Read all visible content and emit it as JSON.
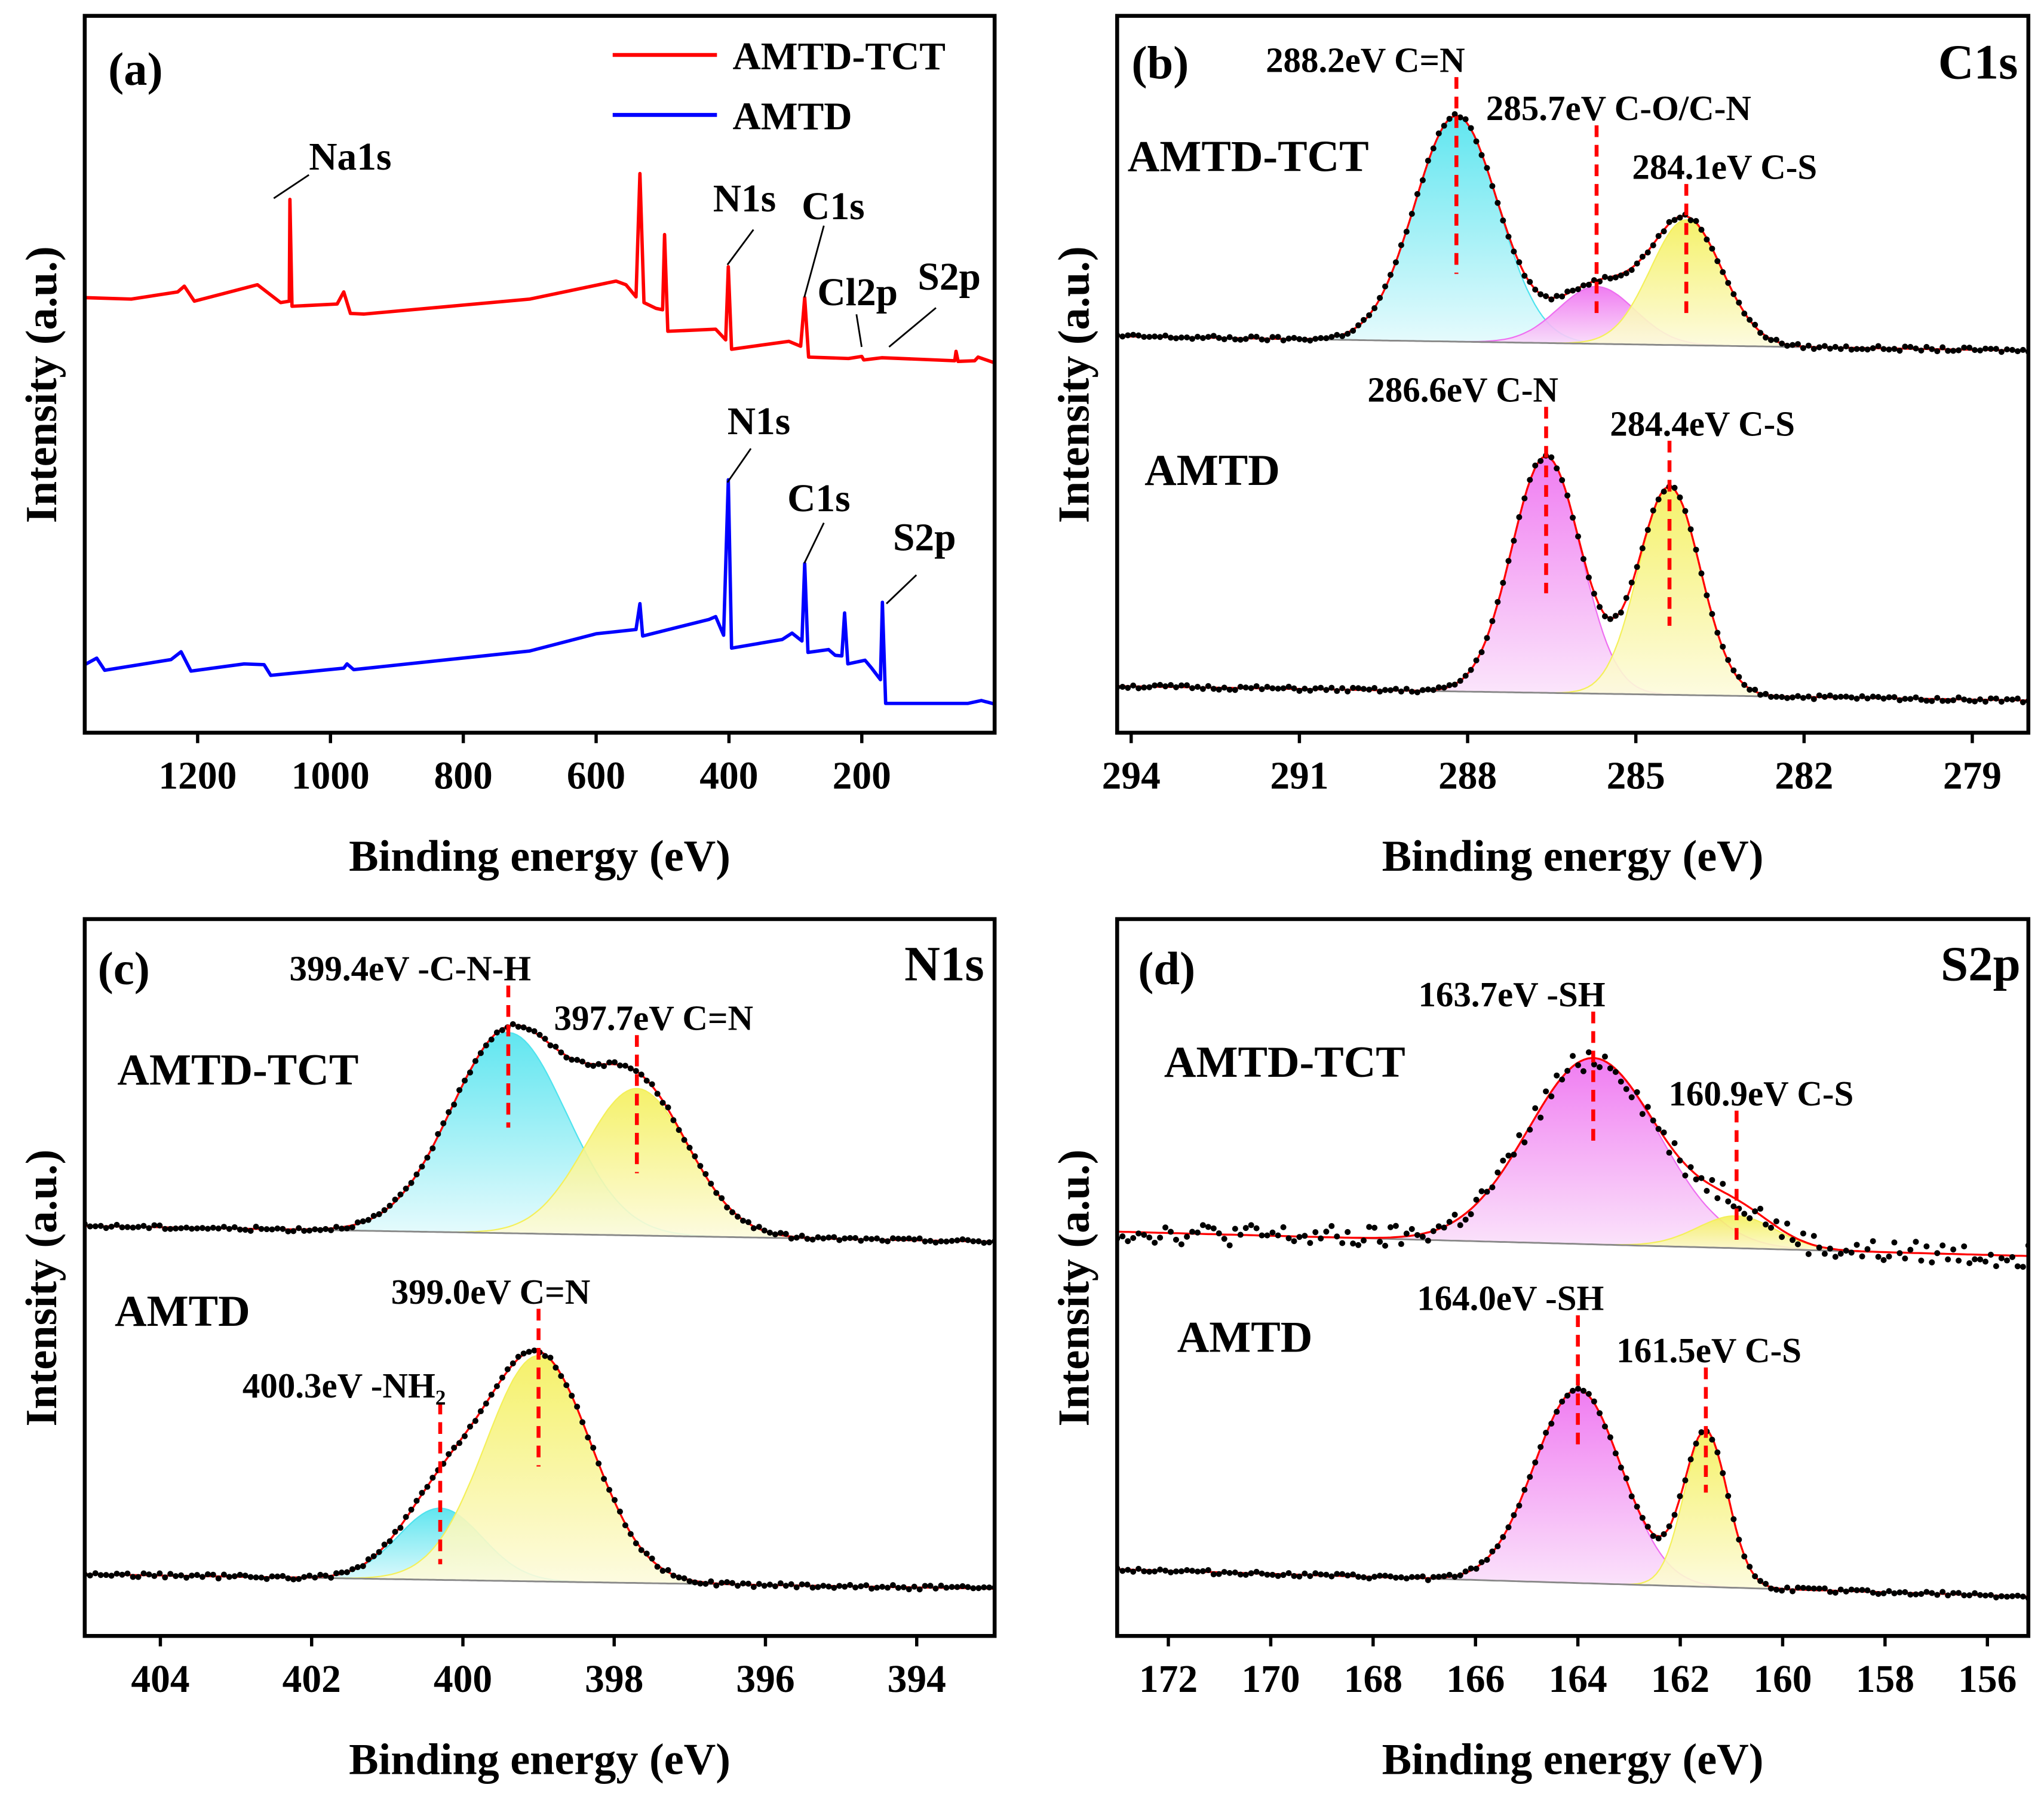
{
  "colors": {
    "amtd_tct": "#ff0000",
    "amtd": "#0000ff",
    "fit": "#ff0000",
    "cyan": "#4fe3ee",
    "magenta": "#ee6ef0",
    "yellow": "#f4f05a",
    "baseline": "#888888",
    "points": "#000000"
  },
  "chart_data": [
    {
      "panel": "(a)",
      "type": "line",
      "xlabel": "Binding energy (eV)",
      "ylabel": "Intensity (a.u.)",
      "xlim": [
        1370,
        0
      ],
      "ylim": [
        0,
        100
      ],
      "xticks": [
        1200,
        1000,
        800,
        600,
        400,
        200
      ],
      "legend": {
        "placement": "top-right",
        "entries": [
          "AMTD-TCT",
          "AMTD"
        ]
      },
      "series": [
        {
          "name": "AMTD-TCT",
          "color": "#ff0000",
          "points": [
            [
              1370,
              60.7
            ],
            [
              1300,
              60.5
            ],
            [
              1230,
              61.5
            ],
            [
              1220,
              62.3
            ],
            [
              1205,
              60.2
            ],
            [
              1110,
              62.5
            ],
            [
              1075,
              60
            ],
            [
              1062,
              60.2
            ],
            [
              1061,
              74.4
            ],
            [
              1058,
              59.5
            ],
            [
              990,
              59.8
            ],
            [
              980,
              61.5
            ],
            [
              970,
              58.5
            ],
            [
              950,
              58.4
            ],
            [
              700,
              60.5
            ],
            [
              570,
              63
            ],
            [
              555,
              62.5
            ],
            [
              540,
              60.8
            ],
            [
              534,
              78
            ],
            [
              528,
              60
            ],
            [
              510,
              59.2
            ],
            [
              500,
              59
            ],
            [
              497,
              69.5
            ],
            [
              492,
              56
            ],
            [
              420,
              56.3
            ],
            [
              405,
              54.8
            ],
            [
              401,
              65
            ],
            [
              396,
              53.5
            ],
            [
              310,
              54.6
            ],
            [
              292,
              53.9
            ],
            [
              286,
              60.7
            ],
            [
              280,
              52.4
            ],
            [
              220,
              52.2
            ],
            [
              200,
              52.5
            ],
            [
              197,
              52
            ],
            [
              170,
              52.3
            ],
            [
              60,
              51.9
            ],
            [
              58,
              53.2
            ],
            [
              55,
              51.8
            ],
            [
              30,
              51.9
            ],
            [
              25,
              52.4
            ],
            [
              0,
              51.6
            ]
          ],
          "annotations": [
            {
              "text": "Na1s",
              "x": 1061
            },
            {
              "text": "N1s",
              "x": 400
            },
            {
              "text": "C1s",
              "x": 285
            },
            {
              "text": "Cl2p",
              "x": 199
            },
            {
              "text": "S2p",
              "x": 165
            }
          ]
        },
        {
          "name": "AMTD",
          "color": "#0000ff",
          "points": [
            [
              1370,
              9.5
            ],
            [
              1352,
              10.4
            ],
            [
              1340,
              8.7
            ],
            [
              1240,
              10.2
            ],
            [
              1225,
              11.3
            ],
            [
              1210,
              8.6
            ],
            [
              1130,
              9.6
            ],
            [
              1100,
              9.5
            ],
            [
              1090,
              8
            ],
            [
              980,
              9
            ],
            [
              975,
              9.6
            ],
            [
              965,
              8.8
            ],
            [
              700,
              11.4
            ],
            [
              600,
              13.8
            ],
            [
              540,
              14.4
            ],
            [
              534,
              18
            ],
            [
              530,
              13.5
            ],
            [
              430,
              15.8
            ],
            [
              420,
              16.2
            ],
            [
              408,
              13.6
            ],
            [
              401,
              35.3
            ],
            [
              396,
              11.8
            ],
            [
              320,
              13
            ],
            [
              305,
              13.9
            ],
            [
              290,
              12.8
            ],
            [
              286,
              23.6
            ],
            [
              281,
              11.2
            ],
            [
              250,
              11.6
            ],
            [
              240,
              10.8
            ],
            [
              230,
              10.7
            ],
            [
              226,
              16.7
            ],
            [
              221,
              9.6
            ],
            [
              195,
              10.1
            ],
            [
              185,
              9
            ],
            [
              172,
              7.4
            ],
            [
              169,
              18.2
            ],
            [
              164,
              4.1
            ],
            [
              40,
              4.1
            ],
            [
              20,
              4.5
            ],
            [
              0,
              4
            ]
          ],
          "annotations": [
            {
              "text": "N1s",
              "x": 400
            },
            {
              "text": "C1s",
              "x": 285
            },
            {
              "text": "S2p",
              "x": 168
            }
          ]
        }
      ]
    },
    {
      "panel": "(b)",
      "region": "C1s",
      "type": "line",
      "xlabel": "Binding energy (eV)",
      "ylabel": "Intensity (a.u.)",
      "xlim": [
        294.25,
        278.0
      ],
      "ylim": [
        0,
        100
      ],
      "xticks": [
        294,
        291,
        288,
        285,
        282,
        279
      ],
      "samples": [
        {
          "name": "AMTD-TCT",
          "baseline": [
            55.3,
            53.3
          ],
          "peaks": [
            {
              "label": "288.2eV C=N",
              "center": 288.2,
              "height": 31.5,
              "fwhm": 1.75,
              "color": "cyan"
            },
            {
              "label": "285.7eV C-O/C-N",
              "center": 285.7,
              "height": 8,
              "fwhm": 1.6,
              "color": "magenta"
            },
            {
              "label": "284.1eV C-S",
              "center": 284.1,
              "height": 17.5,
              "fwhm": 1.5,
              "color": "yellow"
            }
          ]
        },
        {
          "name": "AMTD",
          "baseline": [
            6.5,
            4.5
          ],
          "peaks": [
            {
              "label": "286.6eV C-N",
              "center": 286.6,
              "height": 33,
              "fwhm": 1.45,
              "color": "magenta"
            },
            {
              "label": "284.4eV C-S",
              "center": 284.4,
              "height": 29,
              "fwhm": 1.3,
              "color": "yellow"
            }
          ]
        }
      ]
    },
    {
      "panel": "(c)",
      "region": "N1s",
      "type": "line",
      "xlabel": "Binding energy (eV)",
      "ylabel": "Intensity (a.u.)",
      "xlim": [
        405.0,
        392.97
      ],
      "ylim": [
        0,
        100
      ],
      "xticks": [
        404,
        402,
        400,
        398,
        396,
        394
      ],
      "samples": [
        {
          "name": "AMTD-TCT",
          "baseline": [
            57.2,
            55
          ],
          "peaks": [
            {
              "label": "399.4eV -C-N-H",
              "center": 399.4,
              "height": 28,
              "fwhm": 1.8,
              "color": "cyan"
            },
            {
              "label": "397.7eV C=N",
              "center": 397.7,
              "height": 20.5,
              "fwhm": 1.6,
              "color": "yellow"
            }
          ]
        },
        {
          "name": "AMTD",
          "baseline": [
            8.6,
            6.6
          ],
          "peaks": [
            {
              "label": "400.3eV -NH₂",
              "center": 400.3,
              "height": 10,
              "fwhm": 1.3,
              "color": "cyan"
            },
            {
              "label": "399.0eV C=N",
              "center": 399.0,
              "height": 31.5,
              "fwhm": 1.65,
              "color": "yellow"
            }
          ]
        }
      ]
    },
    {
      "panel": "(d)",
      "region": "S2p",
      "type": "line",
      "xlabel": "Binding energy (eV)",
      "ylabel": "Intensity (a.u.)",
      "xlim": [
        173.0,
        155.2
      ],
      "ylim": [
        0,
        100
      ],
      "xticks": [
        172,
        170,
        168,
        166,
        164,
        162,
        160,
        158,
        156
      ],
      "samples": [
        {
          "name": "AMTD-TCT",
          "baseline": [
            56.4,
            53
          ],
          "peaks": [
            {
              "label": "163.7eV -SH",
              "center": 163.7,
              "height": 26,
              "fwhm": 3.0,
              "color": "magenta"
            },
            {
              "label": "160.9eV C-S",
              "center": 160.9,
              "height": 4.5,
              "fwhm": 1.8,
              "color": "yellow"
            }
          ]
        },
        {
          "name": "AMTD",
          "baseline": [
            9.3,
            5.5
          ],
          "peaks": [
            {
              "label": "164.0eV -SH",
              "center": 164.0,
              "height": 27,
              "fwhm": 2.0,
              "color": "magenta"
            },
            {
              "label": "161.5eV C-S",
              "center": 161.5,
              "height": 21.5,
              "fwhm": 1.0,
              "color": "yellow"
            }
          ]
        }
      ]
    }
  ]
}
